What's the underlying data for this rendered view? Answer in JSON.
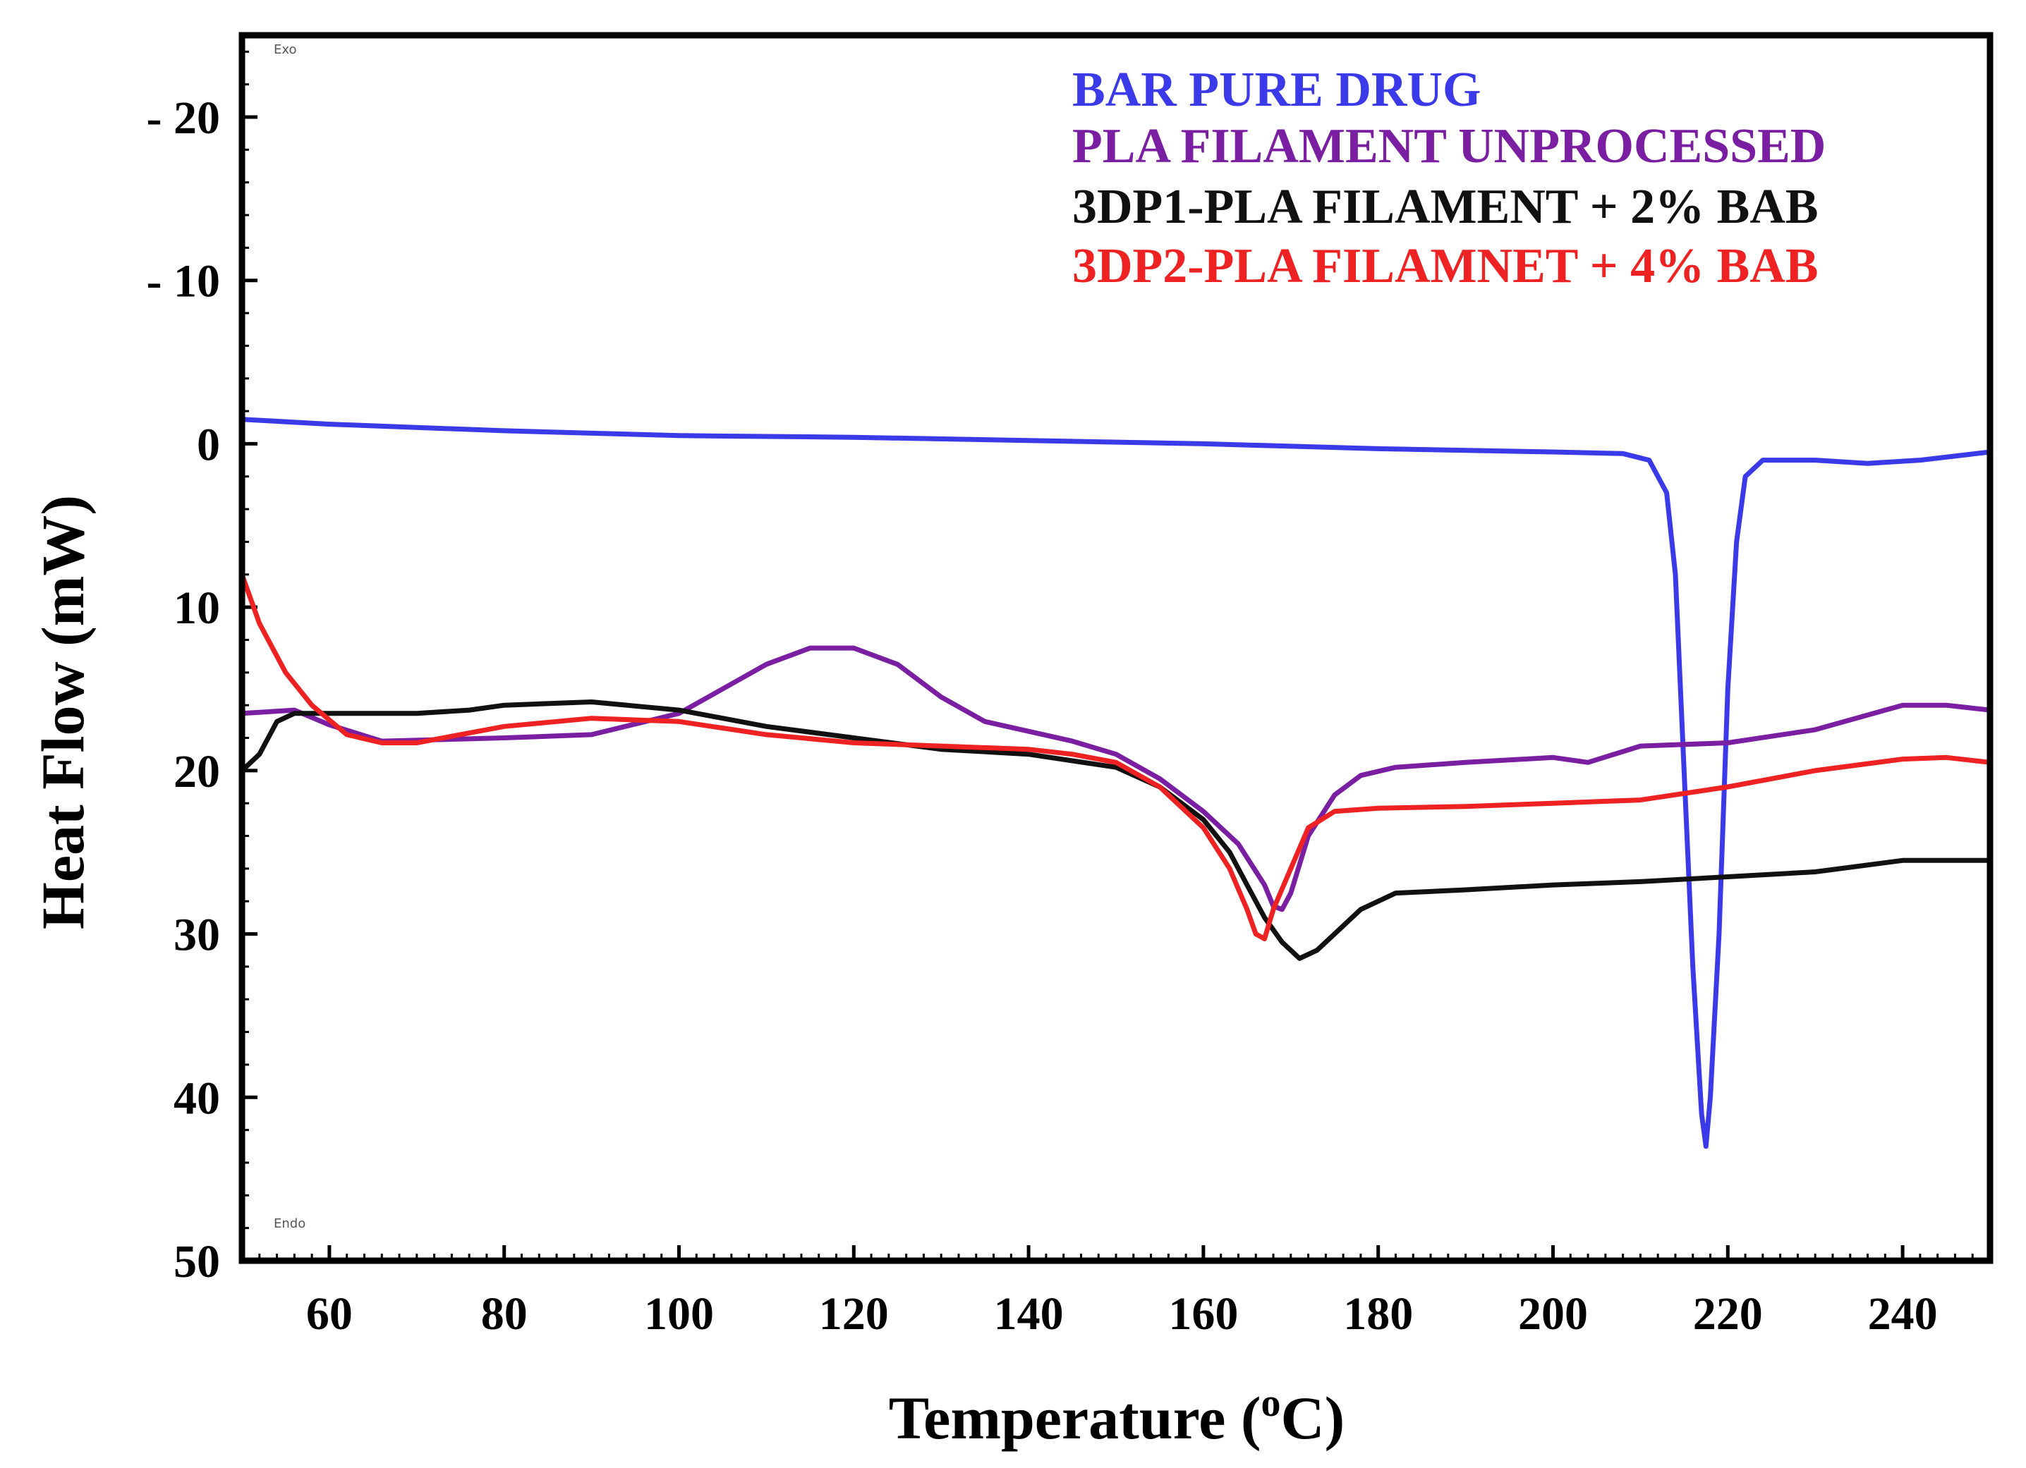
{
  "chart_data": {
    "type": "line",
    "title": "",
    "xlabel": "Temperature (",
    "xlabel_sup": "o",
    "xlabel_end": "C)",
    "ylabel": "Heat Flow (mW)",
    "xlim": [
      50,
      250
    ],
    "ylim": [
      50,
      -25
    ],
    "y_inverted": true,
    "x_ticks": [
      60,
      80,
      100,
      120,
      140,
      160,
      180,
      200,
      220,
      240
    ],
    "x_tick_labels": [
      "60",
      "80",
      "100",
      "120",
      "140",
      "160",
      "180",
      "200",
      "220",
      "240"
    ],
    "y_ticks": [
      -20,
      -10,
      0,
      10,
      20,
      30,
      40,
      50
    ],
    "y_tick_labels": [
      "- 20",
      "- 10",
      "0",
      "10",
      "20",
      "30",
      "40",
      "50"
    ],
    "corner_marks": [
      "Exo",
      "Endo"
    ],
    "legend_position": "top-right",
    "series": [
      {
        "name": "BAR PURE DRUG",
        "color": "#3a3ae8",
        "points": [
          [
            50,
            -1.5
          ],
          [
            60,
            -1.2
          ],
          [
            80,
            -0.8
          ],
          [
            100,
            -0.5
          ],
          [
            120,
            -0.4
          ],
          [
            140,
            -0.2
          ],
          [
            160,
            0.0
          ],
          [
            180,
            0.3
          ],
          [
            200,
            0.5
          ],
          [
            208,
            0.6
          ],
          [
            211,
            1.0
          ],
          [
            213,
            3.0
          ],
          [
            214,
            8.0
          ],
          [
            215,
            20.0
          ],
          [
            216,
            32.0
          ],
          [
            217,
            41.0
          ],
          [
            217.5,
            43.0
          ],
          [
            218,
            40.0
          ],
          [
            219,
            30.0
          ],
          [
            220,
            15.0
          ],
          [
            221,
            6.0
          ],
          [
            222,
            2.0
          ],
          [
            224,
            1.0
          ],
          [
            230,
            1.0
          ],
          [
            236,
            1.2
          ],
          [
            242,
            1.0
          ],
          [
            250,
            0.5
          ]
        ]
      },
      {
        "name": "PLA FILAMENT UNPROCESSED",
        "color": "#7b1fa2",
        "points": [
          [
            50,
            16.5
          ],
          [
            56,
            16.3
          ],
          [
            60,
            17.2
          ],
          [
            66,
            18.2
          ],
          [
            80,
            18.0
          ],
          [
            90,
            17.8
          ],
          [
            100,
            16.5
          ],
          [
            105,
            15.0
          ],
          [
            110,
            13.5
          ],
          [
            115,
            12.5
          ],
          [
            120,
            12.5
          ],
          [
            125,
            13.5
          ],
          [
            130,
            15.5
          ],
          [
            135,
            17.0
          ],
          [
            140,
            17.6
          ],
          [
            145,
            18.2
          ],
          [
            150,
            19.0
          ],
          [
            155,
            20.5
          ],
          [
            160,
            22.5
          ],
          [
            164,
            24.5
          ],
          [
            167,
            27.0
          ],
          [
            168,
            28.3
          ],
          [
            169,
            28.5
          ],
          [
            170,
            27.5
          ],
          [
            172,
            24.0
          ],
          [
            175,
            21.5
          ],
          [
            178,
            20.3
          ],
          [
            182,
            19.8
          ],
          [
            190,
            19.5
          ],
          [
            200,
            19.2
          ],
          [
            204,
            19.5
          ],
          [
            210,
            18.5
          ],
          [
            220,
            18.3
          ],
          [
            230,
            17.5
          ],
          [
            240,
            16.0
          ],
          [
            245,
            16.0
          ],
          [
            250,
            16.3
          ]
        ]
      },
      {
        "name": "3DP1-PLA FILAMENT + 2% BAB",
        "color": "#111111",
        "points": [
          [
            50,
            20.0
          ],
          [
            52,
            19.0
          ],
          [
            54,
            17.0
          ],
          [
            56,
            16.5
          ],
          [
            60,
            16.5
          ],
          [
            70,
            16.5
          ],
          [
            76,
            16.3
          ],
          [
            80,
            16.0
          ],
          [
            90,
            15.8
          ],
          [
            100,
            16.3
          ],
          [
            110,
            17.3
          ],
          [
            120,
            18.0
          ],
          [
            130,
            18.7
          ],
          [
            140,
            19.0
          ],
          [
            150,
            19.8
          ],
          [
            155,
            21.0
          ],
          [
            160,
            23.0
          ],
          [
            163,
            25.0
          ],
          [
            165,
            27.0
          ],
          [
            167,
            29.0
          ],
          [
            169,
            30.5
          ],
          [
            171,
            31.5
          ],
          [
            173,
            31.0
          ],
          [
            175,
            30.0
          ],
          [
            178,
            28.5
          ],
          [
            182,
            27.5
          ],
          [
            190,
            27.3
          ],
          [
            200,
            27.0
          ],
          [
            210,
            26.8
          ],
          [
            220,
            26.5
          ],
          [
            230,
            26.2
          ],
          [
            240,
            25.5
          ],
          [
            250,
            25.5
          ]
        ]
      },
      {
        "name": "3DP2-PLA FILAMNET + 4% BAB",
        "color": "#ee2222",
        "points": [
          [
            50,
            8.0
          ],
          [
            52,
            11.0
          ],
          [
            55,
            14.0
          ],
          [
            58,
            16.0
          ],
          [
            62,
            17.8
          ],
          [
            66,
            18.3
          ],
          [
            70,
            18.3
          ],
          [
            80,
            17.3
          ],
          [
            90,
            16.8
          ],
          [
            100,
            17.0
          ],
          [
            110,
            17.8
          ],
          [
            120,
            18.3
          ],
          [
            130,
            18.5
          ],
          [
            140,
            18.7
          ],
          [
            145,
            19.0
          ],
          [
            150,
            19.5
          ],
          [
            155,
            21.0
          ],
          [
            160,
            23.5
          ],
          [
            163,
            26.0
          ],
          [
            165,
            28.5
          ],
          [
            166,
            30.0
          ],
          [
            167,
            30.3
          ],
          [
            168,
            28.5
          ],
          [
            170,
            26.0
          ],
          [
            172,
            23.5
          ],
          [
            175,
            22.5
          ],
          [
            180,
            22.3
          ],
          [
            190,
            22.2
          ],
          [
            200,
            22.0
          ],
          [
            210,
            21.8
          ],
          [
            220,
            21.0
          ],
          [
            230,
            20.0
          ],
          [
            240,
            19.3
          ],
          [
            245,
            19.2
          ],
          [
            250,
            19.5
          ]
        ]
      }
    ]
  }
}
